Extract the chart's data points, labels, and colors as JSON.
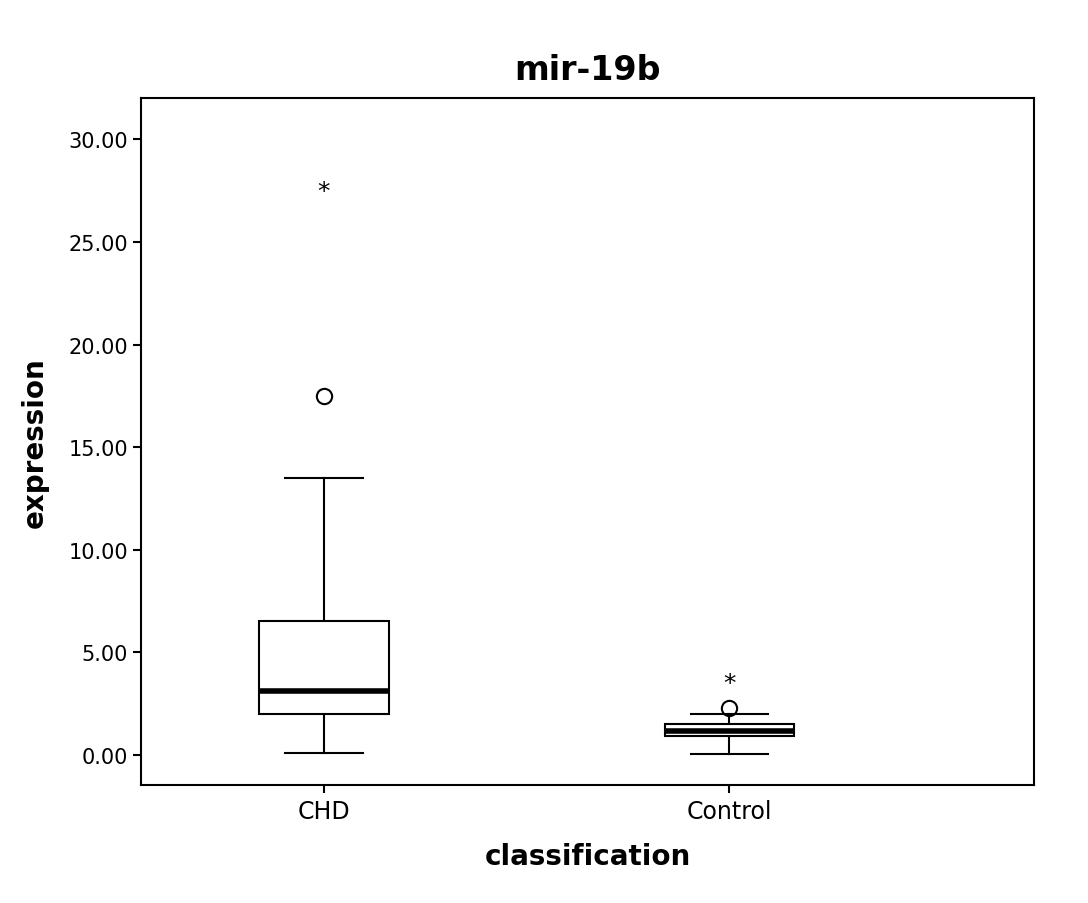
{
  "title": "mir-19b",
  "xlabel": "classification",
  "ylabel": "expression",
  "ylim": [
    -1.5,
    32
  ],
  "yticks": [
    0.0,
    5.0,
    10.0,
    15.0,
    20.0,
    25.0,
    30.0
  ],
  "ytick_labels": [
    "0.00",
    "5.00",
    "10.00",
    "15.00",
    "20.00",
    "25.00",
    "30.00"
  ],
  "categories": [
    "CHD",
    "Control"
  ],
  "CHD": {
    "q1": 2.0,
    "median": 3.1,
    "q3": 6.5,
    "whisker_low": 0.1,
    "whisker_high": 13.5,
    "outliers_circle": [
      17.5
    ],
    "outliers_star": [
      27.5
    ]
  },
  "Control": {
    "q1": 0.9,
    "median": 1.15,
    "q3": 1.5,
    "whisker_low": 0.05,
    "whisker_high": 2.0,
    "outliers_circle": [
      2.3
    ],
    "outliers_star": [
      3.5
    ]
  },
  "box_width": 0.32,
  "box_color": "#ffffff",
  "box_edge_color": "#000000",
  "median_color": "#000000",
  "whisker_color": "#000000",
  "cap_color": "#000000",
  "title_fontsize": 24,
  "axis_label_fontsize": 20,
  "tick_fontsize": 15,
  "background_color": "#ffffff",
  "face_color": "#ffffff"
}
